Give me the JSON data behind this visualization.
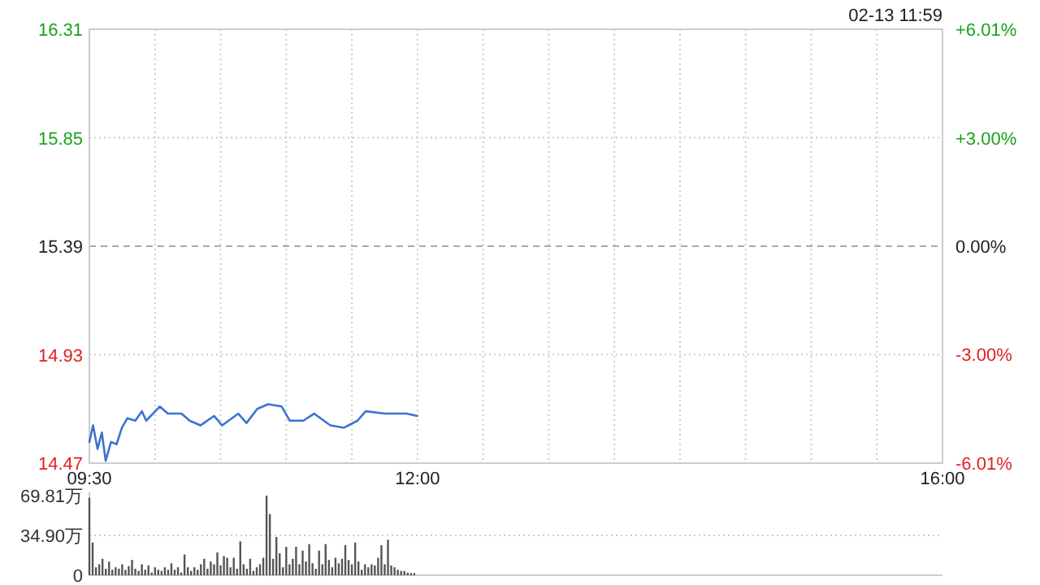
{
  "chart_data": [
    {
      "type": "line",
      "annotations": [
        "02-13 11:59"
      ],
      "x": [
        9.5,
        9.528,
        9.562,
        9.595,
        9.624,
        9.665,
        9.707,
        9.748,
        9.789,
        9.85,
        9.9,
        9.933,
        10.036,
        10.098,
        10.202,
        10.264,
        10.346,
        10.45,
        10.512,
        10.635,
        10.697,
        10.779,
        10.862,
        10.965,
        11.027,
        11.131,
        11.212,
        11.336,
        11.44,
        11.543,
        11.605,
        11.75,
        11.915,
        11.998
      ],
      "series": [
        {
          "color": "#3a74d2",
          "values": [
            14.56,
            14.63,
            14.53,
            14.6,
            14.48,
            14.56,
            14.55,
            14.62,
            14.66,
            14.65,
            14.69,
            14.65,
            14.71,
            14.68,
            14.68,
            14.65,
            14.63,
            14.67,
            14.63,
            14.68,
            14.64,
            14.7,
            14.72,
            14.71,
            14.65,
            14.65,
            14.68,
            14.63,
            14.62,
            14.65,
            14.69,
            14.68,
            14.68,
            14.67
          ]
        }
      ],
      "xlim": [
        9.5,
        16
      ],
      "xticks": [
        {
          "value": 9.5,
          "label": "09:30"
        },
        {
          "value": 10,
          "label": null
        },
        {
          "value": 10.5,
          "label": null
        },
        {
          "value": 11,
          "label": null
        },
        {
          "value": 11.5,
          "label": null
        },
        {
          "value": 12,
          "label": "12:00"
        },
        {
          "value": 12.5,
          "label": null
        },
        {
          "value": 13,
          "label": null
        },
        {
          "value": 13.5,
          "label": null
        },
        {
          "value": 14,
          "label": null
        },
        {
          "value": 14.5,
          "label": null
        },
        {
          "value": 15,
          "label": null
        },
        {
          "value": 15.5,
          "label": null
        },
        {
          "value": 16,
          "label": "16:00"
        }
      ],
      "ylim": [
        14.47,
        16.31
      ],
      "yticks": [
        {
          "value": 14.47,
          "label": "14.47"
        },
        {
          "value": 14.93,
          "label": "14.93"
        },
        {
          "value": 15.39,
          "label": "15.39"
        },
        {
          "value": 15.85,
          "label": "15.85"
        },
        {
          "value": 16.31,
          "label": "16.31"
        }
      ],
      "y2lim": [
        -6.01,
        6.01
      ],
      "y2ticks": [
        {
          "value": -6.01,
          "label": "-6.01%"
        },
        {
          "value": -3,
          "label": "-3.00%"
        },
        {
          "value": 0,
          "label": "0.00%"
        },
        {
          "value": 3,
          "label": "+3.00%"
        },
        {
          "value": 6.01,
          "label": "+6.01%"
        }
      ],
      "ref_lines": [
        {
          "axis": "y",
          "value": 15.39,
          "color": "#aaaaaa",
          "line_style": "dashed"
        }
      ],
      "grid": true
    },
    {
      "type": "bar",
      "tick_labels": "y",
      "grid": "y",
      "x": [
        9.5,
        9.525,
        9.55,
        9.575,
        9.6,
        9.625,
        9.65,
        9.675,
        9.7,
        9.725,
        9.75,
        9.775,
        9.8,
        9.825,
        9.85,
        9.875,
        9.9,
        9.925,
        9.95,
        9.975,
        10,
        10.025,
        10.05,
        10.075,
        10.1,
        10.125,
        10.15,
        10.175,
        10.2,
        10.225,
        10.25,
        10.275,
        10.3,
        10.325,
        10.35,
        10.375,
        10.4,
        10.425,
        10.45,
        10.475,
        10.5,
        10.525,
        10.55,
        10.575,
        10.6,
        10.625,
        10.65,
        10.675,
        10.7,
        10.725,
        10.75,
        10.775,
        10.8,
        10.825,
        10.85,
        10.875,
        10.9,
        10.925,
        10.95,
        10.975,
        11,
        11.025,
        11.05,
        11.075,
        11.1,
        11.125,
        11.15,
        11.175,
        11.2,
        11.225,
        11.25,
        11.275,
        11.3,
        11.325,
        11.35,
        11.375,
        11.4,
        11.425,
        11.45,
        11.475,
        11.5,
        11.525,
        11.55,
        11.575,
        11.6,
        11.625,
        11.65,
        11.675,
        11.7,
        11.725,
        11.75,
        11.775,
        11.8,
        11.825,
        11.85,
        11.875,
        11.9,
        11.925,
        11.95,
        11.975
      ],
      "series": [
        {
          "color": "#555555",
          "values": [
            68,
            28.7,
            7,
            9.6,
            14.4,
            5.7,
            12,
            4.8,
            7,
            5.7,
            9.6,
            4.8,
            8,
            13.4,
            5.7,
            3.8,
            9.6,
            4.8,
            8.6,
            2.4,
            7,
            4.8,
            3.8,
            7,
            4.8,
            10.5,
            4.8,
            7,
            2.4,
            18.2,
            7,
            3.8,
            7,
            4.8,
            9.6,
            14.4,
            5.7,
            12,
            9.6,
            20,
            8.6,
            16.8,
            15.3,
            7,
            15.3,
            5.7,
            29.7,
            9.6,
            5.7,
            14.4,
            3.8,
            7,
            9.6,
            15.3,
            69.8,
            53.6,
            14.4,
            33.5,
            19.2,
            7,
            24.9,
            9.6,
            14.4,
            24.9,
            9.6,
            21.6,
            12,
            27.3,
            10.5,
            5.7,
            21.6,
            9.6,
            27.3,
            13.4,
            7,
            15.3,
            10.5,
            14.4,
            26.3,
            13.4,
            9.6,
            28.7,
            12,
            4.8,
            9.6,
            7,
            9.6,
            8.6,
            15.3,
            26.3,
            9.6,
            31.1,
            8.6,
            7,
            4.8,
            3.8,
            3.8,
            2.4,
            1.9,
            1.9
          ]
        }
      ],
      "xlim": [
        9.5,
        16
      ],
      "ylim": [
        0,
        69.81
      ],
      "yticks": [
        {
          "value": 0,
          "label": "0"
        },
        {
          "value": 34.9,
          "label": "34.90万"
        },
        {
          "value": 69.81,
          "label": "69.81万"
        }
      ]
    }
  ]
}
